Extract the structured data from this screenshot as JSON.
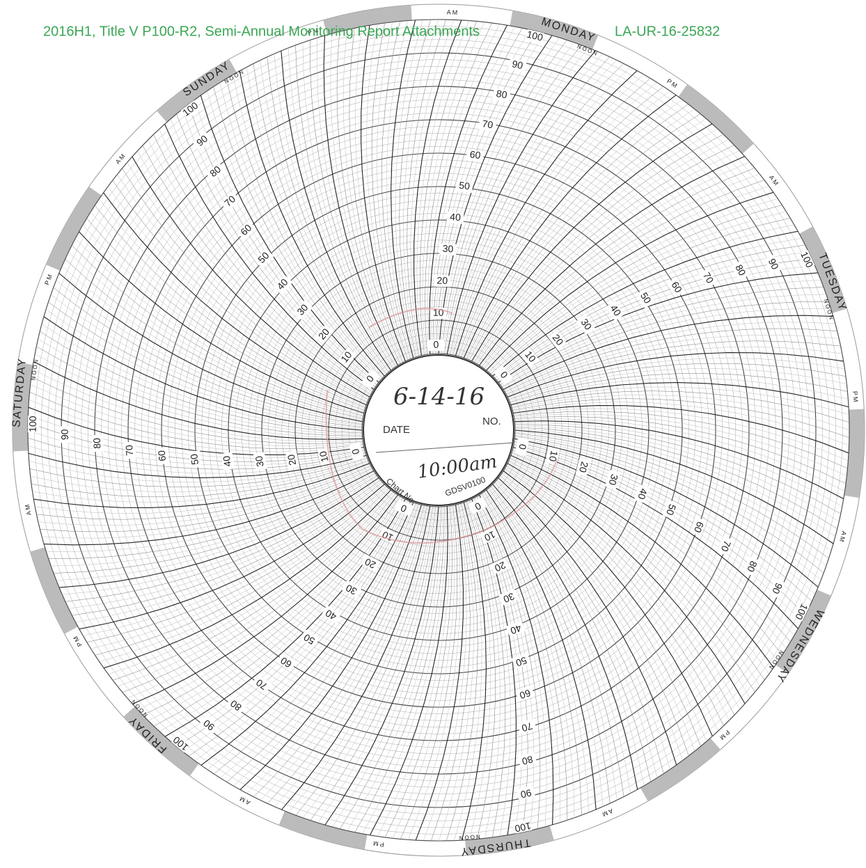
{
  "header": {
    "title": "2016H1, Title V P100-R2, Semi-Annual Monitoring Report Attachments",
    "report_number": "LA-UR-16-25832"
  },
  "chart_paper": {
    "days": [
      "MONDAY",
      "TUESDAY",
      "WEDNESDAY",
      "THURSDAY",
      "FRIDAY",
      "SATURDAY",
      "SUNDAY"
    ],
    "noon_label": "NOON",
    "am_label": "AM",
    "pm_label": "PM",
    "scale_labels": [
      "0",
      "10",
      "20",
      "30",
      "40",
      "50",
      "60",
      "70",
      "80",
      "90",
      "100"
    ]
  },
  "center": {
    "date_label": "DATE",
    "date": "6-14-16",
    "number_label": "NO.",
    "time": "10:00am",
    "chart_number_label": "Chart No",
    "chart_number": "GDSV0100"
  }
}
